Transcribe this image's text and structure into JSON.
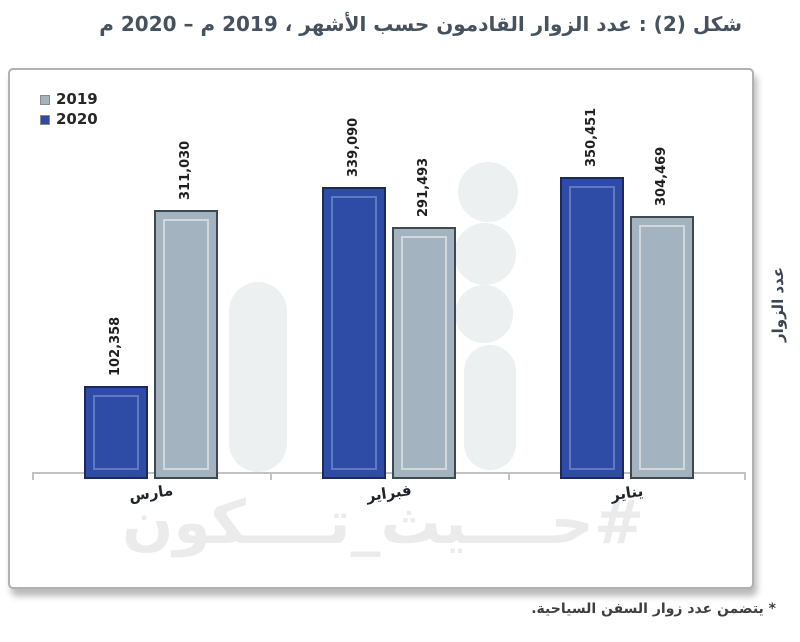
{
  "title": "شكل (2) :  عدد الزوار القادمون حسب الأشهر ، 2019 م – 2020 م",
  "footnote": "* يتضمن عدد زوار السفن السياحية.",
  "watermark": "#حــــيث_تــــكون",
  "ylabel": "عدد الزوار",
  "colors": {
    "bar_2020": "#2e4ca6",
    "bar_2019": "#a3b4c0",
    "axis": "#c2c2c2",
    "title_text": "#46525e",
    "watermark": "#ebebeb",
    "panel_border": "#b1b1b1"
  },
  "chart_data": {
    "type": "bar",
    "direction": "rtl",
    "title": "عدد الزوار القادمون حسب الأشهر ، 2019 م – 2020 م",
    "ylabel": "عدد الزوار",
    "categories": [
      "يناير",
      "فبراير",
      "مارس"
    ],
    "series": [
      {
        "name": "2019",
        "color": "#a3b4c0",
        "values": [
          304469,
          291493,
          311030
        ]
      },
      {
        "name": "2020",
        "color": "#2e4ca6",
        "values": [
          350451,
          339090,
          102358
        ]
      }
    ],
    "value_labels": true,
    "value_label_rotation": -90,
    "scale_max": 350451,
    "grid": false,
    "legend_position": "top-left"
  }
}
